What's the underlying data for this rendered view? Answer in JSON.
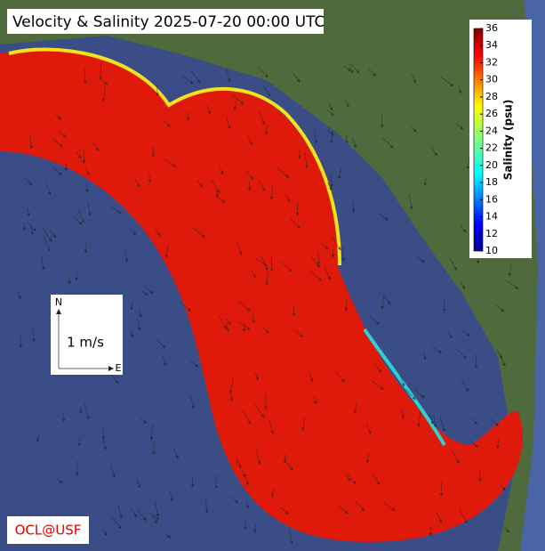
{
  "title": "Velocity & Salinity 2025-07-20 00:00 UTC",
  "colorbar": {
    "label": "Salinity (psu)",
    "lim": [
      10,
      36
    ],
    "ticks": [
      10,
      12,
      14,
      16,
      18,
      20,
      22,
      24,
      26,
      28,
      30,
      32,
      34,
      36
    ]
  },
  "scale": {
    "north": "N",
    "east": "E",
    "label": "1 m/s"
  },
  "credit": "OCL@USF"
}
